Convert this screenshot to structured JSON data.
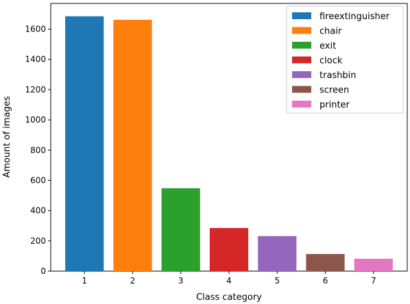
{
  "chart_data": {
    "type": "bar",
    "xlabel": "Class category",
    "ylabel": "Amount of images",
    "categories": [
      "1",
      "2",
      "3",
      "4",
      "5",
      "6",
      "7"
    ],
    "values": [
      1685,
      1662,
      548,
      285,
      232,
      113,
      82
    ],
    "series_labels": [
      "fireextinguisher",
      "chair",
      "exit",
      "clock",
      "trashbin",
      "screen",
      "printer"
    ],
    "colors": [
      "#1f77b4",
      "#ff7f0e",
      "#2ca02c",
      "#d62728",
      "#9467bd",
      "#8c564b",
      "#e377c2"
    ],
    "ylim": [
      0,
      1770
    ],
    "yticks": [
      0,
      200,
      400,
      600,
      800,
      1000,
      1200,
      1400,
      1600
    ],
    "ytick_labels": [
      "0",
      "200",
      "400",
      "600",
      "800",
      "1000",
      "1200",
      "1400",
      "1600"
    ],
    "grid": false,
    "legend_position": "top-right"
  }
}
